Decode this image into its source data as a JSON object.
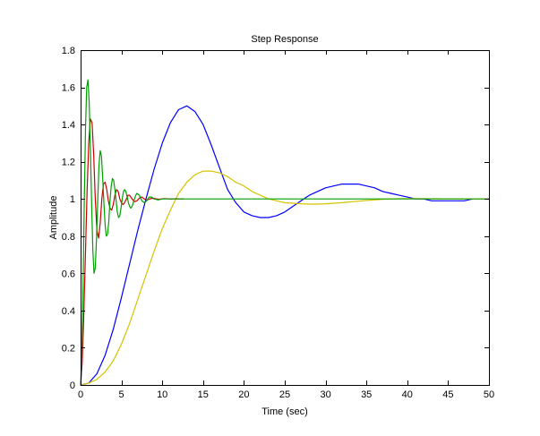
{
  "figure": {
    "background": "#ffffff"
  },
  "chart_data": {
    "type": "line",
    "title": "Step Response",
    "xlabel": "Time (sec)",
    "ylabel": "Amplitude",
    "xlim": [
      0,
      50
    ],
    "ylim": [
      0,
      1.8
    ],
    "xticks": [
      0,
      5,
      10,
      15,
      20,
      25,
      30,
      35,
      40,
      45,
      50
    ],
    "yticks": [
      0,
      0.2,
      0.4,
      0.6,
      0.8,
      1,
      1.2,
      1.4,
      1.6,
      1.8
    ],
    "xtick_labels": [
      "0",
      "5",
      "10",
      "15",
      "20",
      "25",
      "30",
      "35",
      "40",
      "45",
      "50"
    ],
    "ytick_labels": [
      "0",
      "0.2",
      "0.4",
      "0.6",
      "0.8",
      "1",
      "1.2",
      "1.4",
      "1.6",
      "1.8"
    ],
    "grid": false,
    "series": [
      {
        "color": "#0000ff",
        "x": [
          0,
          1,
          2,
          3,
          4,
          5,
          6,
          7,
          8,
          9,
          10,
          11,
          12,
          13,
          14,
          15,
          16,
          17,
          18,
          19,
          20,
          21,
          22,
          23,
          24,
          25,
          26,
          27,
          28,
          29,
          30,
          31,
          32,
          33,
          34,
          35,
          36,
          37,
          38,
          39,
          40,
          41,
          42,
          43,
          44,
          45,
          46,
          47,
          48
        ],
        "y": [
          0,
          0.01,
          0.06,
          0.16,
          0.3,
          0.47,
          0.65,
          0.83,
          1.0,
          1.16,
          1.3,
          1.41,
          1.48,
          1.5,
          1.47,
          1.4,
          1.29,
          1.17,
          1.05,
          0.98,
          0.93,
          0.91,
          0.9,
          0.9,
          0.91,
          0.93,
          0.96,
          0.99,
          1.02,
          1.04,
          1.06,
          1.07,
          1.08,
          1.08,
          1.08,
          1.07,
          1.06,
          1.04,
          1.03,
          1.02,
          1.01,
          1.0,
          1.0,
          0.99,
          0.99,
          0.99,
          0.99,
          0.99,
          1.0
        ]
      },
      {
        "color": "#d4c400",
        "x": [
          0,
          1,
          2,
          3,
          4,
          5,
          6,
          7,
          8,
          9,
          10,
          11,
          12,
          13,
          14,
          15,
          16,
          17,
          18,
          19,
          20,
          21,
          22,
          23,
          24,
          25,
          26,
          27,
          28,
          29,
          30,
          31,
          32,
          33,
          34,
          35,
          36,
          37,
          38,
          39,
          40,
          41,
          42,
          43,
          44,
          45,
          46,
          47,
          48,
          49,
          50
        ],
        "y": [
          0,
          0.01,
          0.03,
          0.07,
          0.13,
          0.22,
          0.33,
          0.46,
          0.59,
          0.72,
          0.84,
          0.94,
          1.03,
          1.09,
          1.13,
          1.15,
          1.15,
          1.14,
          1.12,
          1.09,
          1.07,
          1.04,
          1.02,
          1.0,
          0.99,
          0.98,
          0.977,
          0.974,
          0.972,
          0.972,
          0.974,
          0.977,
          0.98,
          0.984,
          0.988,
          0.992,
          0.995,
          0.998,
          1.0,
          1.001,
          1.002,
          1.002,
          1.002,
          1.001,
          1.001,
          1.0,
          1.0,
          1.0,
          1.0,
          1.0,
          1.0
        ]
      },
      {
        "color": "#cc0000",
        "x": [
          0,
          0.2,
          0.4,
          0.6,
          0.8,
          1.0,
          1.2,
          1.4,
          1.6,
          1.8,
          2.0,
          2.2,
          2.4,
          2.6,
          2.8,
          3.0,
          3.2,
          3.4,
          3.6,
          3.8,
          4.0,
          4.2,
          4.4,
          4.6,
          4.8,
          5.0,
          5.2,
          5.4,
          5.6,
          5.8,
          6.0,
          6.3,
          6.6,
          6.9,
          7.2,
          7.5,
          7.8,
          8.1,
          8.4,
          8.7,
          9.0,
          9.3,
          9.6,
          9.9,
          10.2,
          10.5,
          10.8,
          11.1,
          11.4,
          11.7,
          12.0,
          12.3,
          12.6
        ],
        "y": [
          0,
          0.12,
          0.38,
          0.72,
          1.05,
          1.3,
          1.43,
          1.41,
          1.24,
          1.0,
          0.83,
          0.79,
          0.87,
          1.0,
          1.08,
          1.09,
          1.05,
          0.99,
          0.95,
          0.94,
          0.97,
          1.02,
          1.05,
          1.04,
          1.0,
          0.98,
          0.97,
          0.98,
          1.0,
          1.02,
          1.02,
          1.0,
          0.985,
          0.99,
          1.005,
          1.01,
          1.0,
          0.995,
          0.998,
          1.003,
          1.003,
          1.0,
          0.998,
          1.0,
          1.002,
          1.001,
          1.0,
          0.999,
          1.0,
          1.001,
          1.0,
          1.0,
          1.0
        ]
      },
      {
        "color": "#00a000",
        "x": [
          0,
          0.15,
          0.3,
          0.45,
          0.6,
          0.75,
          0.9,
          1.05,
          1.2,
          1.35,
          1.5,
          1.65,
          1.8,
          1.95,
          2.1,
          2.25,
          2.4,
          2.55,
          2.7,
          2.85,
          3.0,
          3.15,
          3.3,
          3.45,
          3.6,
          3.75,
          3.9,
          4.05,
          4.2,
          4.35,
          4.5,
          4.65,
          4.8,
          4.95,
          5.1,
          5.25,
          5.4,
          5.55,
          5.7,
          5.85,
          6.0,
          6.15,
          6.3,
          6.45,
          6.6,
          6.75,
          6.9,
          7.2,
          7.5,
          7.8,
          8.1,
          8.4,
          8.7,
          9.0,
          9.5,
          10.0,
          11.0,
          12.0,
          13.0,
          14.0,
          16.0,
          18.0,
          20.0,
          25.0,
          30.0,
          35.0,
          40.0,
          45.0,
          50.0
        ],
        "y": [
          0,
          0.15,
          0.52,
          0.98,
          1.38,
          1.6,
          1.64,
          1.52,
          1.28,
          0.98,
          0.72,
          0.6,
          0.63,
          0.79,
          1.0,
          1.18,
          1.26,
          1.23,
          1.12,
          0.98,
          0.86,
          0.8,
          0.81,
          0.88,
          0.99,
          1.07,
          1.11,
          1.1,
          1.05,
          0.99,
          0.93,
          0.9,
          0.91,
          0.95,
          1.0,
          1.04,
          1.05,
          1.04,
          1.01,
          0.98,
          0.96,
          0.95,
          0.96,
          0.98,
          1.0,
          1.02,
          1.03,
          1.02,
          0.99,
          0.98,
          0.99,
          1.01,
          1.01,
          1.0,
          0.995,
          1.0,
          1.0,
          1.0,
          1.0,
          1.0,
          1.0,
          1.0,
          1.0,
          1.0,
          1.0,
          1.0,
          1.0,
          1.0,
          1.0
        ]
      }
    ]
  }
}
